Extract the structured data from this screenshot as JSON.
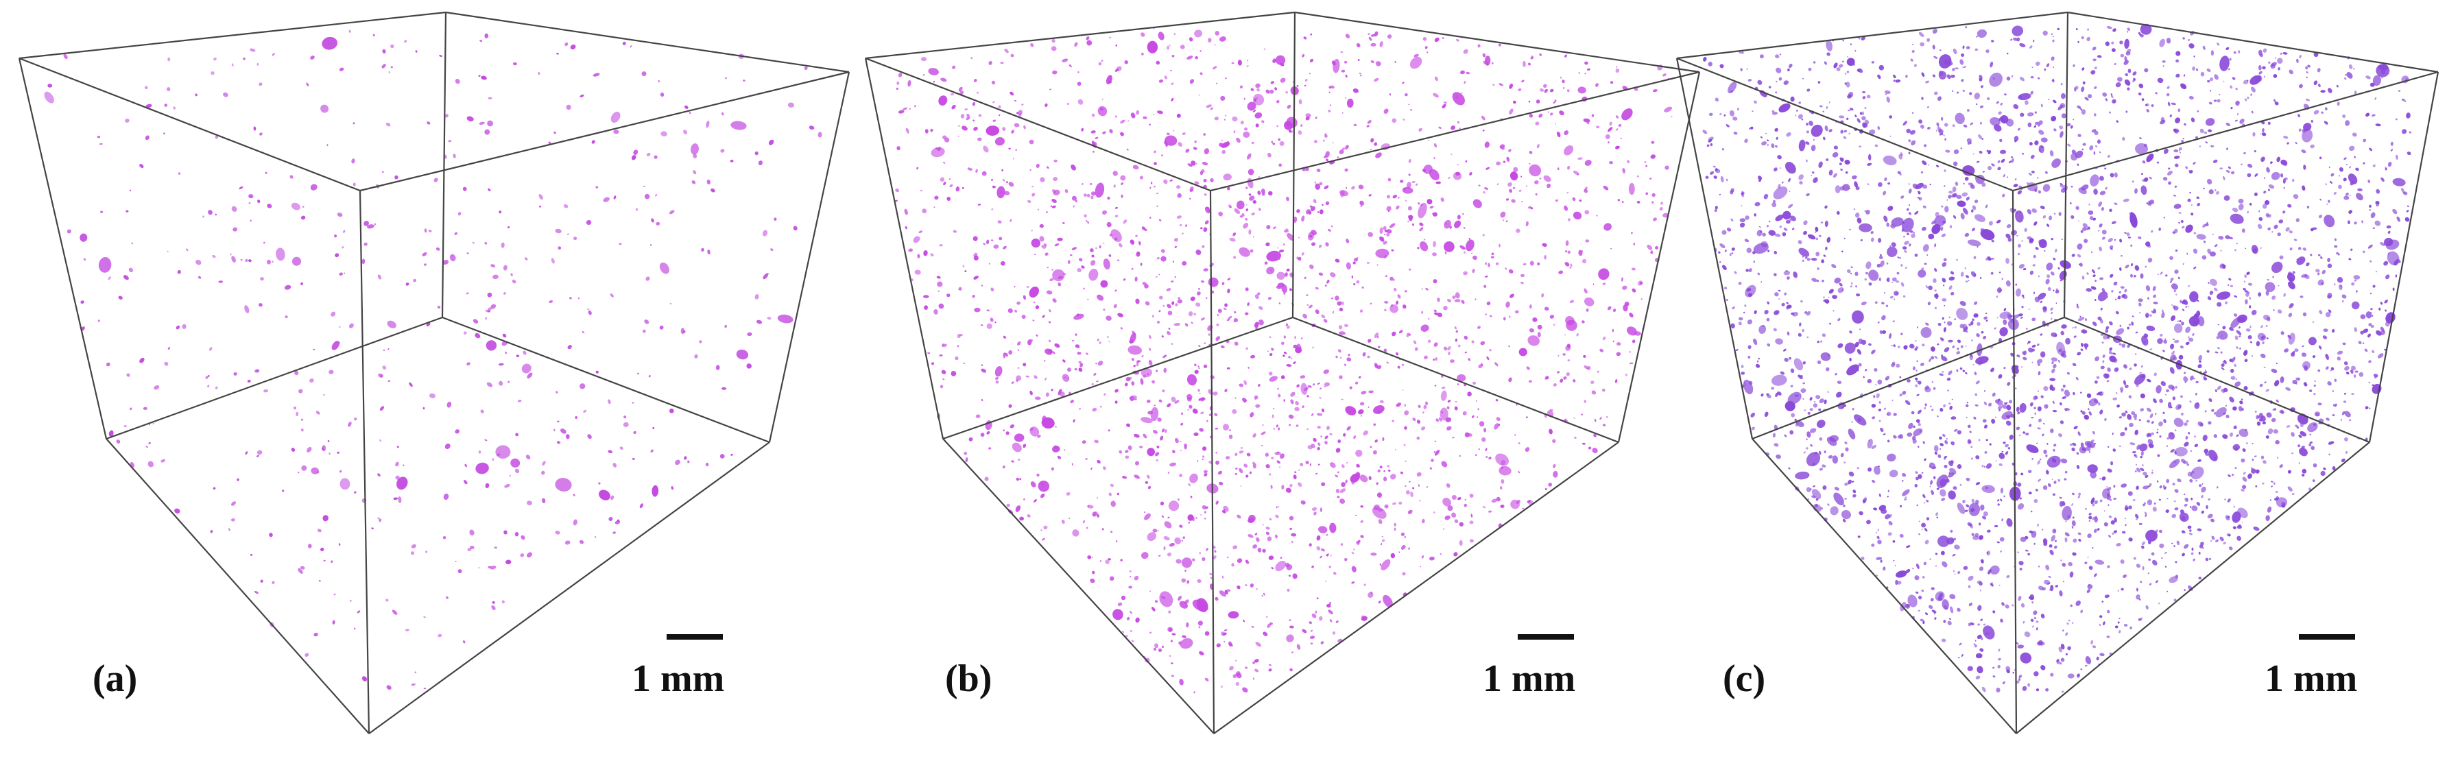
{
  "panels": [
    {
      "label": "(a)",
      "scale_label": "1 mm",
      "particle_color": "#c34be0",
      "particle_density": "sparse"
    },
    {
      "label": "(b)",
      "scale_label": "1 mm",
      "particle_color": "#c749e3",
      "particle_density": "medium"
    },
    {
      "label": "(c)",
      "scale_label": "1 mm",
      "particle_color": "#8a49d9",
      "particle_density": "dense"
    }
  ]
}
